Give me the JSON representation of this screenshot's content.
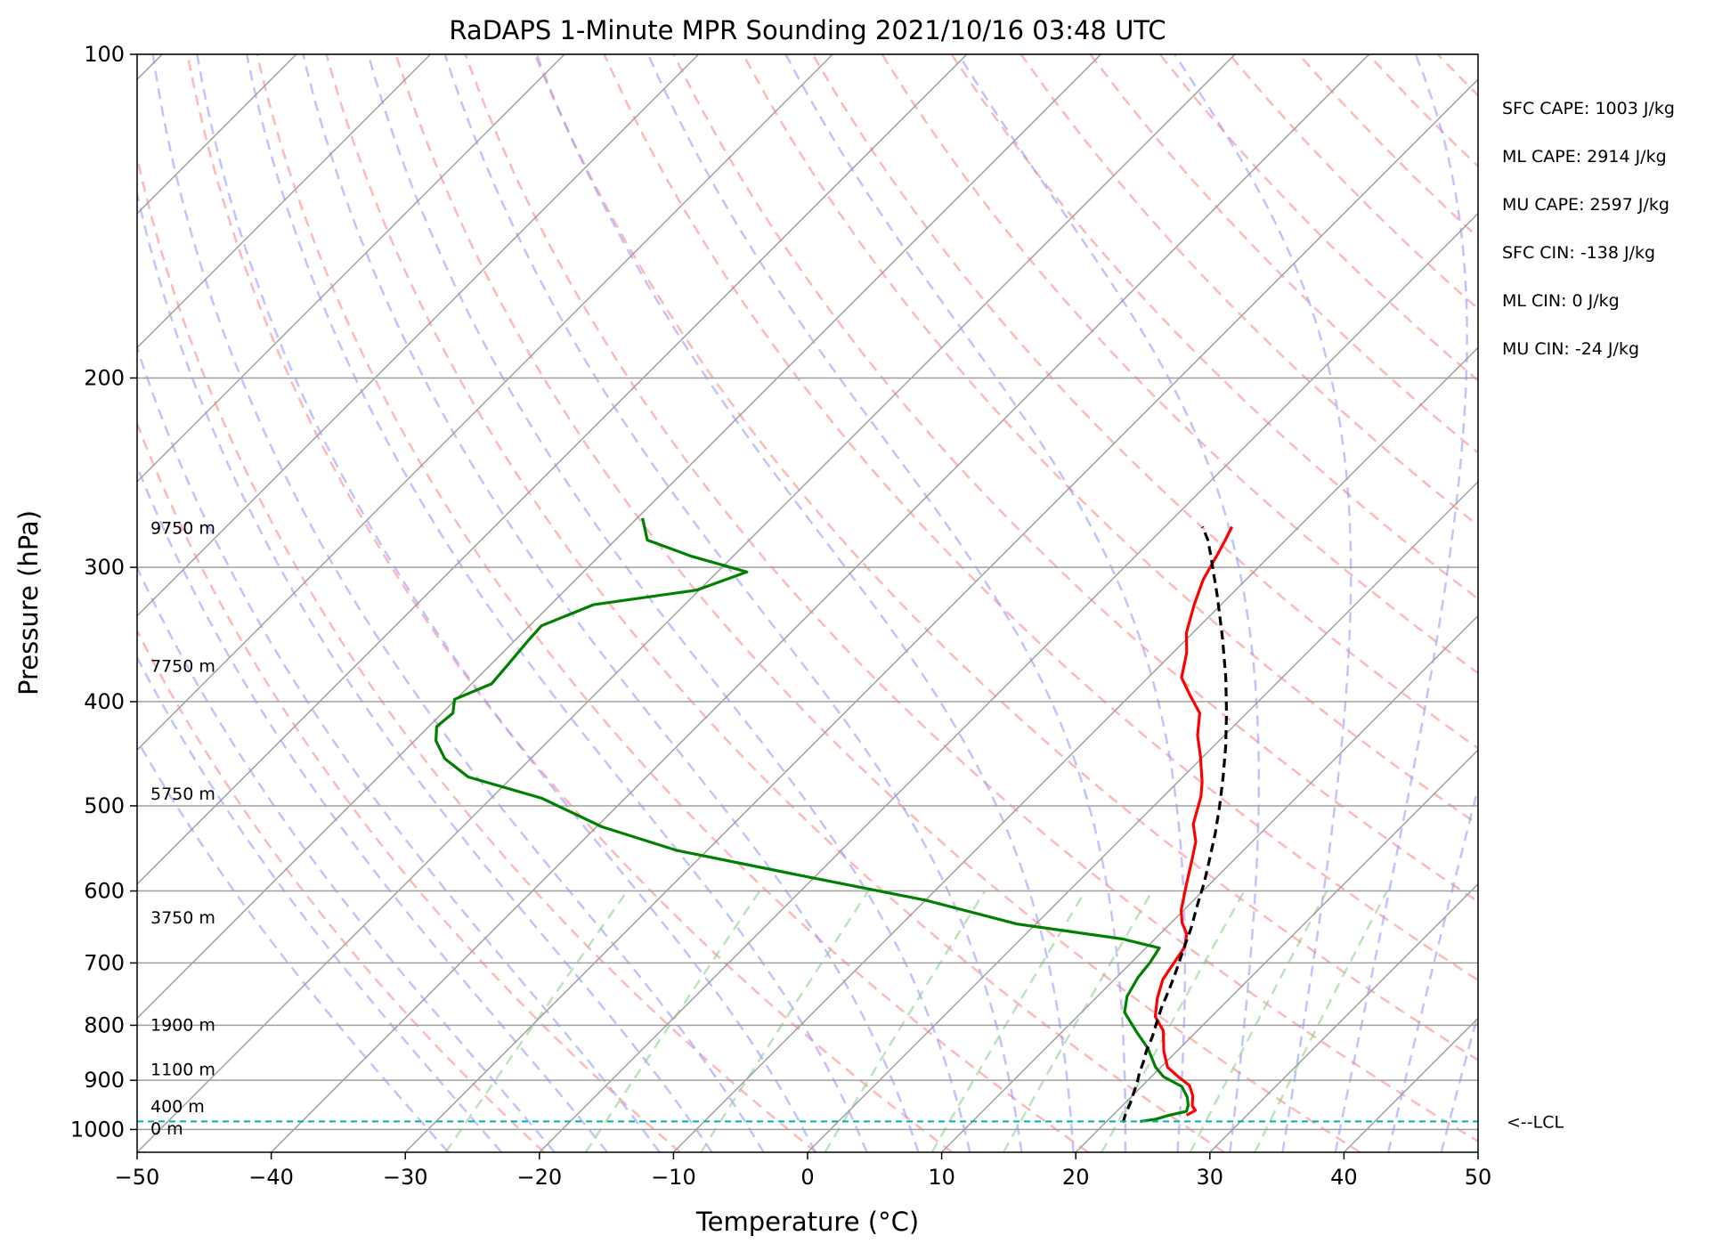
{
  "chart_data": {
    "type": "line",
    "title": "RaDAPS 1-Minute MPR Sounding 2021/10/16 03:48 UTC",
    "xlabel": "Temperature (°C)",
    "ylabel": "Pressure (hPa)",
    "xlim": [
      -50,
      50
    ],
    "ylim": [
      1050,
      100
    ],
    "y_scale": "log",
    "x_ticks": [
      "−50",
      "−40",
      "−30",
      "−20",
      "−10",
      "0",
      "10",
      "20",
      "30",
      "40",
      "50"
    ],
    "y_ticks": [
      {
        "value": 100,
        "label": "100"
      },
      {
        "value": 200,
        "label": "200"
      },
      {
        "value": 300,
        "label": "300"
      },
      {
        "value": 400,
        "label": "400"
      },
      {
        "value": 500,
        "label": "500"
      },
      {
        "value": 600,
        "label": "600"
      },
      {
        "value": 700,
        "label": "700"
      },
      {
        "value": 800,
        "label": "800"
      },
      {
        "value": 900,
        "label": "900"
      },
      {
        "value": 1000,
        "label": "1000"
      }
    ],
    "grid": true,
    "skew_degrees": 45,
    "series": [
      {
        "key": "temperature",
        "color": "#ff0000",
        "points": [
          [
            25.5,
            970
          ],
          [
            25.8,
            960
          ],
          [
            25.2,
            950
          ],
          [
            24.5,
            930
          ],
          [
            23.5,
            910
          ],
          [
            22,
            893
          ],
          [
            20.5,
            875
          ],
          [
            19,
            845
          ],
          [
            17.5,
            810
          ],
          [
            15.8,
            785
          ],
          [
            14.6,
            755
          ],
          [
            13.6,
            725
          ],
          [
            13.2,
            700
          ],
          [
            12.8,
            676
          ],
          [
            12,
            658
          ],
          [
            10.8,
            642
          ],
          [
            9.8,
            625
          ],
          [
            8.2,
            590
          ],
          [
            6.8,
            560
          ],
          [
            5.8,
            540
          ],
          [
            4.3,
            520
          ],
          [
            2.8,
            490
          ],
          [
            1.8,
            475
          ],
          [
            -0.2,
            450
          ],
          [
            -2,
            430
          ],
          [
            -3.5,
            410
          ],
          [
            -5.5,
            395
          ],
          [
            -7.5,
            380
          ],
          [
            -9,
            360
          ],
          [
            -10.5,
            345
          ],
          [
            -12,
            325
          ],
          [
            -13.2,
            308
          ],
          [
            -14,
            292
          ],
          [
            -14.5,
            283
          ],
          [
            -15,
            275
          ]
        ]
      },
      {
        "key": "dewpoint",
        "color": "#008000",
        "points": [
          [
            22.5,
            983
          ],
          [
            23.5,
            978
          ],
          [
            24.2,
            970
          ],
          [
            25.2,
            962
          ],
          [
            24.9,
            950
          ],
          [
            24.2,
            933
          ],
          [
            23,
            912
          ],
          [
            20.9,
            893
          ],
          [
            19.6,
            875
          ],
          [
            17.6,
            840
          ],
          [
            15.6,
            812
          ],
          [
            13.2,
            778
          ],
          [
            12.2,
            752
          ],
          [
            11.6,
            722
          ],
          [
            11.4,
            700
          ],
          [
            11,
            678
          ],
          [
            7.6,
            665
          ],
          [
            -1.4,
            644
          ],
          [
            -10,
            612
          ],
          [
            -20.6,
            582
          ],
          [
            -32.3,
            550
          ],
          [
            -39.6,
            523
          ],
          [
            -46.2,
            492
          ],
          [
            -53.3,
            470
          ],
          [
            -56.4,
            452
          ],
          [
            -58.4,
            435
          ],
          [
            -59.4,
            422
          ],
          [
            -59.2,
            410
          ],
          [
            -60.1,
            398
          ],
          [
            -58.5,
            385
          ],
          [
            -58.7,
            370
          ],
          [
            -59,
            350
          ],
          [
            -59.1,
            340
          ],
          [
            -56.8,
            325
          ],
          [
            -50.2,
            315
          ],
          [
            -47.8,
            303
          ],
          [
            -53.1,
            293
          ],
          [
            -57.6,
            283
          ],
          [
            -59.6,
            270
          ]
        ]
      },
      {
        "key": "parcel",
        "color": "#000000",
        "dashed": true,
        "points": [
          [
            21.3,
            985
          ],
          [
            20.8,
            965
          ],
          [
            20.4,
            945
          ],
          [
            19.9,
            925
          ],
          [
            19.4,
            905
          ],
          [
            18.8,
            885
          ],
          [
            18.3,
            865
          ],
          [
            17.7,
            845
          ],
          [
            17.1,
            820
          ],
          [
            16.5,
            800
          ],
          [
            15.6,
            770
          ],
          [
            14.8,
            740
          ],
          [
            13.9,
            710
          ],
          [
            12.9,
            680
          ],
          [
            11.9,
            650
          ],
          [
            10.7,
            620
          ],
          [
            9.5,
            590
          ],
          [
            8.1,
            560
          ],
          [
            6.6,
            530
          ],
          [
            4.9,
            500
          ],
          [
            3.0,
            470
          ],
          [
            0.9,
            440
          ],
          [
            -1.5,
            410
          ],
          [
            -4.2,
            380
          ],
          [
            -7.3,
            350
          ],
          [
            -10.8,
            320
          ],
          [
            -14.5,
            292
          ],
          [
            -15.8,
            283
          ],
          [
            -17.2,
            275
          ]
        ]
      }
    ],
    "height_labels": [
      {
        "label": "9750 m",
        "p": 276
      },
      {
        "label": "7750 m",
        "p": 371
      },
      {
        "label": "5750 m",
        "p": 488
      },
      {
        "label": "3750 m",
        "p": 636
      },
      {
        "label": "1900 m",
        "p": 800
      },
      {
        "label": "1100 m",
        "p": 880
      },
      {
        "label": "400 m",
        "p": 953
      },
      {
        "label": "0 m",
        "p": 999
      }
    ],
    "lcl": {
      "p": 983,
      "label": "<--LCL",
      "color": "#00b0b0"
    },
    "stats": [
      "SFC CAPE: 1003 J/kg",
      "ML CAPE: 2914 J/kg",
      "MU CAPE: 2597 J/kg",
      "SFC CIN: -138 J/kg",
      "ML CIN: 0 J/kg",
      "MU CIN: -24 J/kg"
    ],
    "background_lines": {
      "dry_adiabats_color": "#ff9a9a",
      "moist_adiabats_color": "#9a9aff",
      "mixing_ratio_color": "#8fd08f",
      "isotherm_color": "#a0a0a0"
    }
  }
}
